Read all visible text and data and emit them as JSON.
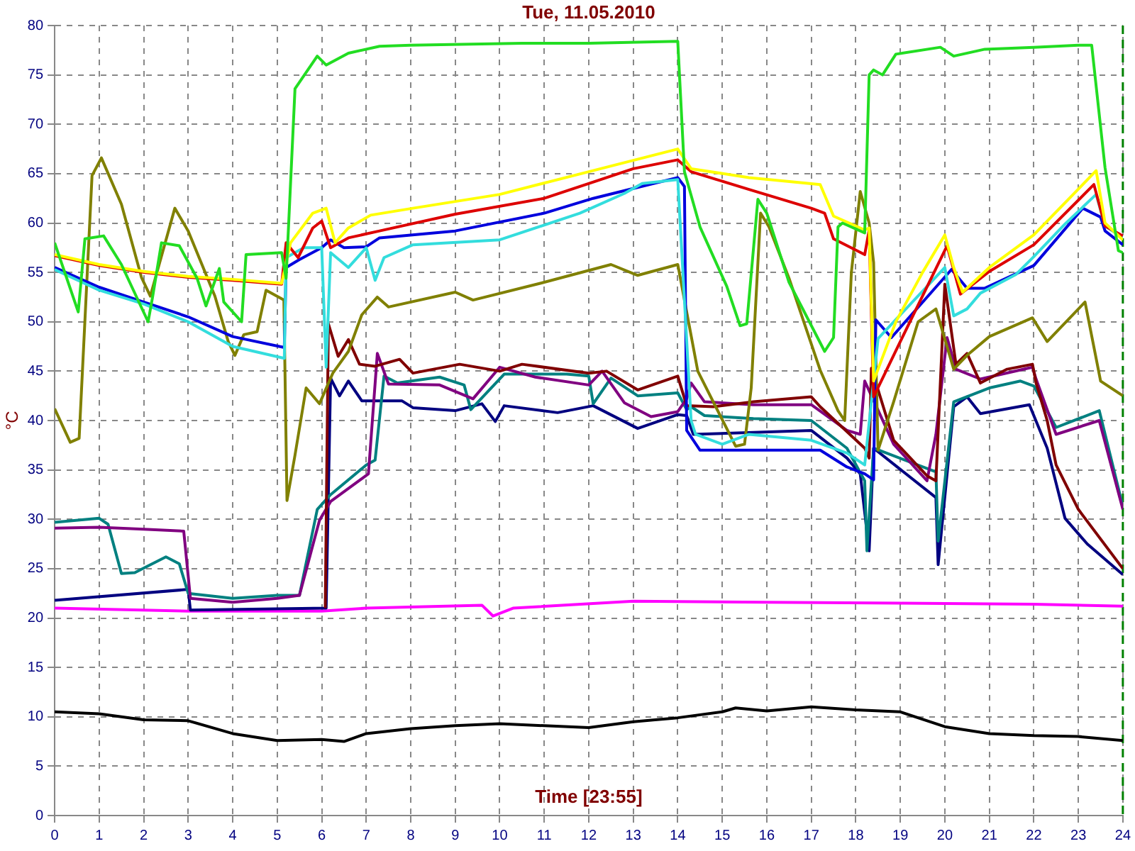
{
  "chart_data": {
    "type": "line",
    "title": "Tue, 11.05.2010",
    "xlabel": "Time [23:55]",
    "ylabel": "°C",
    "xlim": [
      0,
      24
    ],
    "ylim": [
      0,
      80
    ],
    "xticks": [
      0,
      1,
      2,
      3,
      4,
      5,
      6,
      7,
      8,
      9,
      10,
      11,
      12,
      13,
      14,
      15,
      16,
      17,
      18,
      19,
      20,
      21,
      22,
      23,
      24
    ],
    "yticks": [
      0,
      5,
      10,
      15,
      20,
      25,
      30,
      35,
      40,
      45,
      50,
      55,
      60,
      65,
      70,
      75,
      80
    ],
    "grid": true,
    "legend": false,
    "marker": "none",
    "line_style": "solid",
    "ref_lines": [
      {
        "axis": "x",
        "value": 24,
        "color": "#008000",
        "line_style": "dashed"
      }
    ],
    "series": [
      {
        "color": "#22dd22",
        "x": [
          0,
          0.53,
          0.68,
          1.1,
          1.5,
          2.1,
          2.2,
          2.4,
          2.8,
          3.2,
          3.4,
          3.7,
          3.8,
          4.2,
          4.3,
          5.1,
          5.2,
          5.4,
          5.9,
          6.1,
          6.6,
          7.3,
          8,
          10.5,
          12,
          14,
          14.15,
          14.5,
          15.1,
          15.4,
          15.55,
          15.8,
          16,
          16.5,
          17.3,
          17.5,
          17.6,
          17.7,
          18.2,
          18.3,
          18.4,
          18.6,
          18.9,
          19.9,
          20.2,
          20.9,
          22,
          23,
          23.3,
          23.6,
          23.9,
          24
        ],
        "values": [
          58,
          51,
          58.4,
          58.7,
          55.8,
          50,
          52.5,
          58,
          57.7,
          54.4,
          51.6,
          55.4,
          52,
          50,
          56.8,
          57,
          54.4,
          73.6,
          76.9,
          76,
          77.2,
          77.9,
          78,
          78.2,
          78.2,
          78.4,
          65.2,
          59.6,
          53.6,
          49.6,
          49.8,
          62.4,
          61,
          54,
          47,
          48.4,
          59.6,
          60,
          59,
          75,
          75.5,
          75,
          77.1,
          77.8,
          76.9,
          77.6,
          77.8,
          78,
          78,
          65.6,
          57.2,
          57
        ]
      },
      {
        "color": "#ffff00",
        "x": [
          0,
          1,
          2,
          3,
          4,
          5.1,
          5.3,
          5.8,
          6.1,
          6.3,
          6.6,
          7.1,
          8.05,
          10,
          12,
          14,
          14.3,
          15.6,
          17.2,
          17.5,
          18.2,
          18.3,
          18.4,
          18.9,
          19.5,
          20,
          20.2,
          20.4,
          21,
          22,
          23.4,
          23.6,
          24
        ],
        "values": [
          56.8,
          55.8,
          55.1,
          54.6,
          54.3,
          53.9,
          58,
          61,
          61.5,
          58,
          59.5,
          60.8,
          61.5,
          62.9,
          65.2,
          67.5,
          65.5,
          64.6,
          63.9,
          60.7,
          59.3,
          59.5,
          44,
          50,
          55,
          58.8,
          55.5,
          53,
          55.5,
          58.8,
          65.3,
          60,
          58.3
        ]
      },
      {
        "color": "#dd0000",
        "x": [
          0,
          1,
          2,
          3,
          4,
          5.1,
          5.2,
          5.47,
          5.8,
          6.0,
          6.2,
          6.6,
          7.3,
          9,
          11,
          13,
          14,
          14.3,
          15.6,
          17,
          17.3,
          17.5,
          18.2,
          18.3,
          18.4,
          19,
          20.05,
          20.35,
          21,
          22,
          23.35,
          23.6,
          24
        ],
        "values": [
          56.7,
          55.7,
          55,
          54.5,
          54.2,
          53.8,
          58,
          56.5,
          59.5,
          60.2,
          57.5,
          58.5,
          59.2,
          60.9,
          62.5,
          65.5,
          66.4,
          65.2,
          63.4,
          61.5,
          61,
          58.4,
          56.8,
          59.3,
          42.4,
          48,
          57.7,
          52.8,
          55.1,
          57.8,
          63.9,
          59.7,
          58.7
        ]
      },
      {
        "color": "#33dddd",
        "x": [
          0,
          1,
          2,
          3,
          4,
          5.16,
          5.2,
          5.6,
          6.0,
          6.1,
          6.2,
          6.6,
          7,
          7.2,
          7.4,
          8.05,
          10,
          11.8,
          12.8,
          13.2,
          14,
          14.3,
          14.4,
          15,
          15.6,
          17,
          17.8,
          18.2,
          18.5,
          20,
          20.2,
          20.5,
          20.8,
          21.6,
          22,
          22.7,
          23.4,
          23.6,
          24
        ],
        "values": [
          55.3,
          53.2,
          51.8,
          50,
          47.5,
          46.3,
          56.5,
          57.5,
          57.5,
          45.4,
          57,
          55.5,
          57.5,
          54.2,
          56.5,
          57.8,
          58.3,
          61,
          63,
          64,
          64.4,
          40,
          38.6,
          37.6,
          38.6,
          38,
          36.7,
          35.5,
          48.3,
          55.5,
          50.6,
          51.3,
          52.9,
          54.8,
          56.6,
          59.9,
          62.9,
          59.7,
          58.5
        ]
      },
      {
        "color": "#0000dd",
        "x": [
          0,
          1,
          2,
          3,
          4,
          5.16,
          5.2,
          5.5,
          6,
          6.2,
          6.5,
          7,
          7.3,
          9,
          11,
          12.1,
          13,
          14,
          14.15,
          14.2,
          14.5,
          17.2,
          17.8,
          18.2,
          18.4,
          18.45,
          18.8,
          20.15,
          20.5,
          20.9,
          22,
          23.1,
          23.5,
          23.6,
          24
        ],
        "values": [
          55.5,
          53.5,
          52,
          50.5,
          48.5,
          47.4,
          55.5,
          56.3,
          57.5,
          58.3,
          57.5,
          57.6,
          58.5,
          59.2,
          61,
          62.5,
          63.5,
          64.6,
          63.7,
          39,
          37,
          37,
          35.3,
          34.6,
          34,
          50.2,
          48.4,
          55.3,
          53.4,
          53.4,
          55.7,
          61.5,
          60.6,
          59.2,
          57.8
        ]
      },
      {
        "color": "#808000",
        "x": [
          0,
          0.35,
          0.55,
          0.84,
          1.05,
          1.5,
          1.95,
          2.15,
          2.7,
          3,
          3.6,
          3.9,
          4.05,
          4.25,
          4.55,
          4.75,
          5.15,
          5.22,
          5.4,
          5.65,
          5.95,
          6.25,
          6.6,
          6.9,
          7.25,
          7.5,
          9,
          9.4,
          11,
          12.5,
          13.1,
          14,
          14.45,
          15.3,
          15.5,
          15.65,
          15.86,
          16.05,
          16.5,
          17.2,
          17.6,
          17.75,
          17.9,
          18.1,
          18.3,
          18.4,
          18.5,
          18.85,
          19.4,
          19.8,
          20.2,
          20.5,
          21,
          21.97,
          22.3,
          23.15,
          23.5,
          24
        ],
        "values": [
          41.2,
          37.8,
          38.2,
          64.8,
          66.6,
          61.9,
          54.5,
          52.6,
          61.5,
          59.2,
          52.6,
          48,
          46.6,
          48.7,
          49,
          53.2,
          52.2,
          31.9,
          36.5,
          43.3,
          41.7,
          44.8,
          47,
          50.7,
          52.5,
          51.5,
          53,
          52.2,
          54,
          55.8,
          54.7,
          55.8,
          45,
          37.4,
          37.6,
          43.3,
          61,
          59.6,
          54.4,
          45.1,
          41,
          40,
          55,
          63.2,
          60,
          56,
          37,
          41.9,
          50,
          51.3,
          45.2,
          46.6,
          48.5,
          50.4,
          48,
          52,
          44,
          42.5
        ]
      },
      {
        "color": "#800000",
        "x": [
          6.08,
          6.15,
          6.37,
          6.6,
          6.85,
          7.2,
          7.75,
          8.05,
          9.1,
          10,
          10.5,
          12,
          12.4,
          13.1,
          14,
          14.2,
          14.8,
          15.7,
          17,
          17.2,
          18.2,
          18.3,
          18.35,
          18.85,
          19.6,
          19.8,
          20,
          20.25,
          20.5,
          20.8,
          21.4,
          21.97,
          22.05,
          22.3,
          22.5,
          23,
          24
        ],
        "values": [
          21,
          49.8,
          46.5,
          48.2,
          45.7,
          45.5,
          46.2,
          44.8,
          45.7,
          45,
          45.7,
          44.8,
          45,
          43.1,
          44.5,
          41.5,
          41.4,
          41.9,
          42.4,
          41.4,
          37.2,
          36.2,
          45.3,
          38,
          34.4,
          33.9,
          53.8,
          45.7,
          46.8,
          43.8,
          45.2,
          45.7,
          43.8,
          40,
          35.5,
          31,
          25
        ]
      },
      {
        "color": "#800080",
        "x": [
          0,
          1,
          2,
          2.9,
          3.05,
          4,
          5,
          5.5,
          5.95,
          6.2,
          7.05,
          7.25,
          7.5,
          8.65,
          9.4,
          10,
          10.8,
          12,
          12.3,
          12.8,
          13.4,
          14,
          14.2,
          14.3,
          14.6,
          15.7,
          17,
          17.8,
          18.1,
          18.2,
          18.85,
          19.6,
          19.8,
          20.05,
          20.25,
          20.8,
          21.97,
          22.05,
          22.5,
          23.47,
          24
        ],
        "values": [
          29.1,
          29.2,
          29,
          28.8,
          22,
          21.6,
          22,
          22.3,
          29.9,
          31.8,
          34.6,
          46.8,
          43.7,
          43.6,
          42.2,
          45.4,
          44.4,
          43.6,
          45,
          41.8,
          40.4,
          40.9,
          42.2,
          43.8,
          41.9,
          41.6,
          41.6,
          39,
          38.6,
          44,
          37.6,
          33.9,
          38.6,
          48.4,
          45.2,
          44.2,
          45.4,
          44.2,
          38.6,
          40,
          31
        ]
      },
      {
        "color": "#008080",
        "x": [
          0,
          1,
          1.2,
          1.5,
          1.8,
          2.5,
          2.8,
          3,
          4,
          5,
          5.5,
          5.9,
          6.2,
          7,
          7.2,
          7.4,
          7.7,
          8.65,
          9.2,
          9.35,
          10.1,
          11.5,
          12,
          12.1,
          12.5,
          13.1,
          14,
          14.2,
          14.3,
          14.6,
          15.7,
          17,
          17.8,
          18.2,
          18.25,
          18.4,
          19.8,
          19.85,
          20.2,
          21,
          21.7,
          22,
          22.5,
          23.47,
          24
        ],
        "values": [
          29.7,
          30.1,
          29.5,
          24.5,
          24.6,
          26.2,
          25.5,
          22.5,
          22,
          22.3,
          22.3,
          31,
          32.5,
          35.5,
          36,
          44.5,
          43.8,
          44.4,
          43.6,
          41.1,
          44.7,
          44.7,
          44.5,
          41.7,
          44.3,
          42.5,
          42.8,
          41.1,
          41.4,
          40.5,
          40.2,
          40,
          37.2,
          33.9,
          26.8,
          37.2,
          34.8,
          27.8,
          41.9,
          43.3,
          44,
          43.5,
          39.3,
          41,
          31.3
        ]
      },
      {
        "color": "#000080",
        "x": [
          0,
          3,
          3.05,
          6.1,
          6.2,
          6.4,
          6.6,
          6.9,
          7.3,
          7.8,
          8.05,
          9,
          9.6,
          9.9,
          10.1,
          11.3,
          12.1,
          13.1,
          14,
          14.2,
          14.35,
          15.7,
          17,
          17.8,
          18.1,
          18.3,
          18.4,
          19.8,
          19.85,
          20.2,
          20.5,
          20.8,
          21.9,
          22.3,
          22.7,
          23.2,
          24
        ],
        "values": [
          21.8,
          22.9,
          20.8,
          21,
          44.3,
          42.5,
          44,
          42,
          42,
          42,
          41.3,
          41,
          41.7,
          39.9,
          41.5,
          40.8,
          41.5,
          39.2,
          40.6,
          40.5,
          38.6,
          38.8,
          39,
          36.2,
          34.6,
          26.8,
          37.2,
          32.2,
          25.4,
          41.4,
          42.4,
          40.7,
          41.6,
          37.2,
          30.1,
          27.5,
          24.4
        ]
      },
      {
        "color": "#ff00ff",
        "x": [
          0,
          3,
          6,
          7,
          9.6,
          9.85,
          10.3,
          13,
          16,
          19,
          22,
          24
        ],
        "values": [
          21,
          20.7,
          20.7,
          21,
          21.3,
          20.2,
          21,
          21.7,
          21.6,
          21.5,
          21.4,
          21.2
        ]
      },
      {
        "color": "#000000",
        "x": [
          0,
          1,
          2,
          3,
          4,
          5,
          6,
          6.5,
          7,
          8,
          9,
          10,
          11,
          12,
          13,
          14,
          15,
          15.3,
          16,
          17,
          18,
          19,
          20,
          21,
          22,
          23,
          24
        ],
        "values": [
          10.5,
          10.3,
          9.7,
          9.6,
          8.3,
          7.6,
          7.7,
          7.5,
          8.3,
          8.8,
          9.1,
          9.3,
          9.1,
          8.9,
          9.5,
          9.9,
          10.5,
          10.9,
          10.6,
          11,
          10.7,
          10.5,
          9,
          8.3,
          8.1,
          8,
          7.6
        ]
      }
    ]
  }
}
